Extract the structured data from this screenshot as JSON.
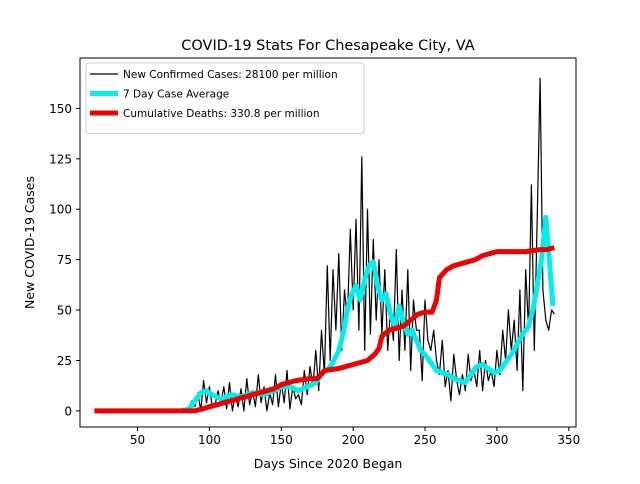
{
  "chart_data": {
    "type": "line",
    "title": "COVID-19 Stats For Chesapeake City, VA",
    "xlabel": "Days Since 2020 Began",
    "ylabel": "New COVID-19 Cases",
    "xlim": [
      10,
      355
    ],
    "ylim": [
      -8,
      175
    ],
    "xticks": [
      50,
      100,
      150,
      200,
      250,
      300,
      350
    ],
    "yticks": [
      0,
      25,
      50,
      75,
      100,
      125,
      150
    ],
    "legend_position": "top-left",
    "series": [
      {
        "name": "New Confirmed Cases: 28100 per million",
        "color": "#000000",
        "x": [
          20,
          40,
          60,
          80,
          85,
          88,
          90,
          92,
          94,
          96,
          98,
          100,
          102,
          104,
          106,
          108,
          110,
          112,
          114,
          116,
          118,
          120,
          122,
          124,
          126,
          128,
          130,
          132,
          134,
          136,
          138,
          140,
          142,
          144,
          146,
          148,
          150,
          152,
          154,
          156,
          158,
          160,
          162,
          164,
          166,
          168,
          170,
          172,
          174,
          176,
          178,
          180,
          182,
          184,
          186,
          188,
          190,
          192,
          194,
          196,
          198,
          200,
          202,
          204,
          206,
          208,
          210,
          212,
          214,
          216,
          218,
          220,
          222,
          224,
          226,
          228,
          230,
          232,
          234,
          236,
          238,
          240,
          242,
          244,
          246,
          248,
          250,
          252,
          254,
          256,
          258,
          260,
          262,
          264,
          266,
          268,
          270,
          272,
          274,
          276,
          278,
          280,
          282,
          284,
          286,
          288,
          290,
          292,
          294,
          296,
          298,
          300,
          302,
          304,
          306,
          308,
          310,
          312,
          314,
          316,
          318,
          320,
          322,
          324,
          326,
          328,
          330,
          332,
          334,
          336,
          338,
          340
        ],
        "values": [
          0,
          0,
          0,
          0,
          1,
          5,
          2,
          9,
          0,
          15,
          4,
          12,
          2,
          3,
          10,
          4,
          12,
          1,
          14,
          0,
          8,
          2,
          11,
          0,
          16,
          3,
          10,
          2,
          18,
          4,
          12,
          0,
          9,
          3,
          18,
          2,
          14,
          4,
          20,
          1,
          12,
          6,
          8,
          3,
          20,
          8,
          22,
          12,
          30,
          10,
          40,
          18,
          72,
          25,
          70,
          40,
          78,
          30,
          60,
          45,
          90,
          50,
          95,
          40,
          126,
          30,
          100,
          38,
          85,
          45,
          75,
          38,
          70,
          30,
          50,
          35,
          80,
          25,
          60,
          30,
          70,
          20,
          55,
          40,
          40,
          15,
          55,
          35,
          30,
          40,
          25,
          18,
          35,
          12,
          20,
          5,
          28,
          15,
          8,
          18,
          10,
          28,
          15,
          20,
          12,
          30,
          10,
          25,
          15,
          20,
          12,
          30,
          18,
          40,
          25,
          50,
          30,
          45,
          20,
          60,
          10,
          70,
          40,
          112,
          30,
          95,
          165,
          60,
          45,
          40,
          50,
          48
        ],
        "line_width": 1.2
      },
      {
        "name": "7 Day Case Average",
        "color": "#00eeee",
        "x": [
          80,
          86,
          90,
          94,
          98,
          102,
          108,
          115,
          122,
          130,
          138,
          145,
          150,
          156,
          162,
          168,
          174,
          178,
          182,
          186,
          190,
          193,
          196,
          199,
          202,
          205,
          208,
          211,
          214,
          217,
          220,
          223,
          226,
          229,
          232,
          235,
          238,
          241,
          244,
          247,
          250,
          254,
          258,
          262,
          266,
          270,
          274,
          278,
          282,
          286,
          290,
          294,
          298,
          302,
          306,
          310,
          314,
          318,
          322,
          325,
          328,
          331,
          334,
          337,
          339
        ],
        "values": [
          0,
          1,
          5,
          9,
          10,
          8,
          6,
          8,
          7,
          9,
          8,
          10,
          12,
          12,
          10,
          12,
          14,
          18,
          20,
          24,
          30,
          38,
          50,
          58,
          62,
          55,
          65,
          72,
          74,
          62,
          55,
          58,
          48,
          42,
          52,
          44,
          38,
          40,
          35,
          30,
          28,
          24,
          20,
          19,
          18,
          16,
          15,
          14,
          18,
          22,
          23,
          21,
          19,
          20,
          24,
          28,
          33,
          38,
          42,
          50,
          62,
          75,
          96,
          70,
          52
        ],
        "line_width": 5
      },
      {
        "name": "Cumulative Deaths: 330.8 per million",
        "color": "#ee0000",
        "x": [
          20,
          90,
          95,
          100,
          105,
          110,
          115,
          120,
          125,
          130,
          135,
          140,
          145,
          150,
          160,
          170,
          175,
          180,
          190,
          195,
          200,
          205,
          210,
          215,
          218,
          220,
          225,
          230,
          235,
          240,
          245,
          250,
          255,
          258,
          260,
          265,
          270,
          275,
          280,
          285,
          290,
          295,
          300,
          310,
          320,
          330,
          335,
          340
        ],
        "values": [
          0,
          0,
          1,
          2,
          3,
          4,
          5,
          6,
          7,
          8,
          9,
          10,
          11,
          13,
          15,
          16,
          16,
          20,
          21,
          22,
          23,
          24,
          25,
          28,
          31,
          37,
          40,
          41,
          42,
          45,
          48,
          49,
          49,
          55,
          66,
          70,
          72,
          73,
          74,
          75,
          77,
          78,
          79,
          79,
          79,
          80,
          80,
          81
        ],
        "line_width": 5
      }
    ]
  }
}
